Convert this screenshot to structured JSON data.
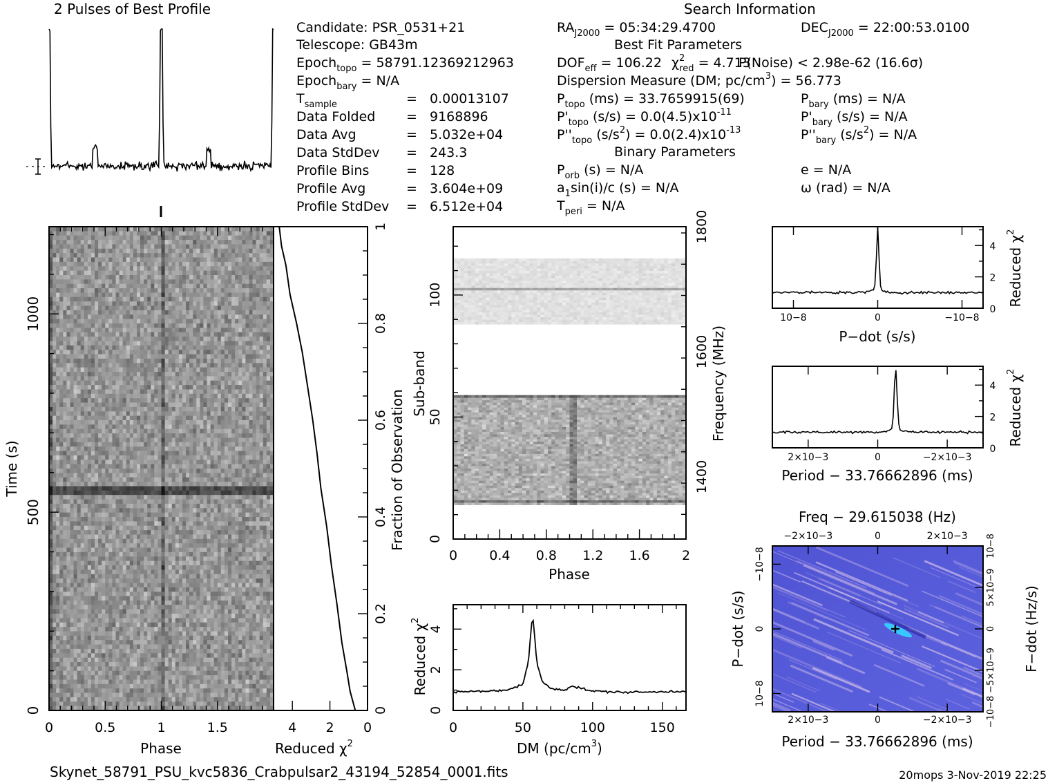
{
  "profile": {
    "title": "2 Pulses of Best Profile"
  },
  "search_info": {
    "header": "Search Information",
    "candidate": "Candidate:  PSR_0531+21",
    "telescope": "Telescope:  GB43m",
    "epoch_topo_label": "Epoch",
    "epoch_topo_sub": "topo",
    "epoch_topo_value": " = 58791.12369212963",
    "epoch_bary_label": "Epoch",
    "epoch_bary_sub": "bary",
    "epoch_bary_value": " = N/A",
    "rows": [
      {
        "label": "T",
        "sub": "sample",
        "eq": "=",
        "value": "0.00013107"
      },
      {
        "label": "Data Folded",
        "sub": "",
        "eq": "=",
        "value": "9168896"
      },
      {
        "label": "Data Avg",
        "sub": "",
        "eq": "=",
        "value": "5.032e+04"
      },
      {
        "label": "Data StdDev",
        "sub": "",
        "eq": "=",
        "value": "243.3"
      },
      {
        "label": "Profile Bins",
        "sub": "",
        "eq": "=",
        "value": "128"
      },
      {
        "label": "Profile Avg",
        "sub": "",
        "eq": "=",
        "value": "3.604e+09"
      },
      {
        "label": "Profile StdDev",
        "sub": "",
        "eq": "=",
        "value": "6.512e+04"
      }
    ],
    "ra_label": "RA",
    "ra_sub": "J2000",
    "ra_value": " = 05:34:29.4700",
    "dec_label": "DEC",
    "dec_sub": "J2000",
    "dec_value": " = 22:00:53.0100",
    "best_fit_header": "Best Fit Parameters",
    "dof_label": "DOF",
    "dof_sub": "eff",
    "dof_value": " = 106.22",
    "chi_sub": "red",
    "chi_value": " = 4.713",
    "pnoise": "P(Noise) < 2.98e-62  (16.6σ)",
    "dm_line": "Dispersion Measure (DM; pc/cm",
    "dm_value": ") = 56.773",
    "ptopo_label": "P",
    "ptopo_sub": "topo",
    "ptopo_value": " (ms) =  33.7659915(69)",
    "pbary_label": "P",
    "pbary_sub": "bary",
    "pbary_value": " (ms) = N/A",
    "pdtopo_label": "P'",
    "pdtopo_sub": "topo",
    "pdtopo_value": " (s/s) = 0.0(4.5)x10",
    "pdtopo_exp": "-11",
    "pdbary_label": "P'",
    "pdbary_sub": "bary",
    "pdbary_value": " (s/s) = N/A",
    "pddtopo_label": "P''",
    "pddtopo_sub": "topo",
    "pddtopo_value": " (s/s",
    "pddtopo_value2": ") = 0.0(2.4)x10",
    "pddtopo_exp": "-13",
    "pddbary_label": "P''",
    "pddbary_sub": "bary",
    "pddbary_value": " (s/s",
    "pddbary_value2": ") = N/A",
    "binary_header": "Binary Parameters",
    "porb_label": "P",
    "porb_sub": "orb",
    "porb_value": " (s) = N/A",
    "e_value": "e = N/A",
    "a1_label": "a",
    "a1_sub": "1",
    "a1_value": "sin(i)/c (s) = N/A",
    "omega_value": "ω (rad) = N/A",
    "tperi_label": "T",
    "tperi_sub": "peri",
    "tperi_value": " = N/A"
  },
  "axes": {
    "time_label": "Time (s)",
    "phase_label": "Phase",
    "redchi_label": "Reduced χ",
    "fraction_label": "Fraction of Observation",
    "subband_label": "Sub-band",
    "frequency_label": "Frequency (MHz)",
    "dm_label": "DM (pc/cm",
    "pdot_label": "P−dot (s/s)",
    "period_label": "Period − 33.76662896 (ms)",
    "freq_label": "Freq − 29.615038 (Hz)",
    "fdot_label": "F−dot (Hz/s)"
  },
  "footer": {
    "filename": "Skynet_58791_PSU_kvc5836_Crabpulsar2_43194_52854_0001.fits",
    "stamp": "20mops  3-Nov-2019 22:25"
  },
  "colors": {
    "ink": "#000000",
    "plane_base": "#5b5fd8",
    "plane_light": "#c9b8e8",
    "plane_peak": "#38c8ff"
  },
  "chart_data": [
    {
      "type": "line",
      "name": "pulse-profile",
      "title": "2 Pulses of Best Profile",
      "xlabel": "Phase",
      "xlim": [
        0,
        2
      ],
      "peak_phase": [
        0.0,
        1.0
      ]
    },
    {
      "type": "heatmap",
      "name": "time-vs-phase",
      "xlabel": "Phase",
      "ylabel": "Time (s)",
      "xlim": [
        0,
        2
      ],
      "ylim": [
        0,
        1220
      ],
      "x_ticks": [
        "0",
        "0.5",
        "1",
        "1.5"
      ],
      "y_ticks": [
        "0",
        "500",
        "1000"
      ]
    },
    {
      "type": "line",
      "name": "cumulative-reduced-chi2",
      "xlabel": "Reduced χ2",
      "ylabel": "Fraction of Observation",
      "xlim": [
        5,
        0
      ],
      "ylim": [
        0,
        1
      ],
      "x_ticks": [
        "4",
        "2",
        "0"
      ],
      "y_ticks": [
        "0",
        "0.2",
        "0.4",
        "0.6",
        "0.8",
        "1"
      ],
      "x": [
        4.7,
        4.6,
        4.35,
        4.1,
        3.8,
        3.5,
        3.2,
        2.95,
        2.7,
        2.45,
        2.2,
        1.95,
        1.65,
        1.35,
        1.1,
        0.9,
        0.65
      ],
      "y": [
        1.0,
        0.96,
        0.92,
        0.86,
        0.8,
        0.74,
        0.67,
        0.6,
        0.53,
        0.46,
        0.38,
        0.3,
        0.22,
        0.14,
        0.08,
        0.04,
        0.0
      ]
    },
    {
      "type": "heatmap",
      "name": "subband-vs-phase",
      "xlabel": "Phase",
      "ylabel": "Sub-band",
      "xlim": [
        0,
        2
      ],
      "ylim": [
        0,
        128
      ],
      "x_ticks": [
        "0",
        "0.4",
        "0.8",
        "1.2",
        "1.6",
        "2"
      ],
      "y_ticks": [
        "0",
        "50",
        "100"
      ],
      "y2label": "Frequency (MHz)",
      "y2_ticks": [
        "1400",
        "1600",
        "1800"
      ]
    },
    {
      "type": "line",
      "name": "dm-curve",
      "xlabel": "DM (pc/cm3)",
      "ylabel": "Reduced χ2",
      "xlim": [
        0,
        167
      ],
      "ylim": [
        0,
        5.2
      ],
      "x_ticks": [
        "0",
        "50",
        "100",
        "150"
      ],
      "y_ticks": [
        "0",
        "2",
        "4"
      ],
      "x": [
        0,
        20,
        40,
        50,
        54,
        56,
        57,
        58,
        60,
        64,
        70,
        80,
        85,
        100,
        120,
        140,
        167
      ],
      "y": [
        0.9,
        0.95,
        1.0,
        1.3,
        2.4,
        4.1,
        4.7,
        4.0,
        2.3,
        1.4,
        1.1,
        1.0,
        1.2,
        0.95,
        0.9,
        0.9,
        0.95
      ]
    },
    {
      "type": "line",
      "name": "pdot-curve",
      "xlabel": "P−dot (s/s)",
      "ylabel": "Reduced χ2",
      "ylim": [
        0,
        5.2
      ],
      "y_ticks": [
        "0",
        "2",
        "4"
      ],
      "x_ticks": [
        "10−8",
        "0",
        "−10−8"
      ],
      "peak_x": 0,
      "peak_y": 4.8,
      "baseline": 1.0
    },
    {
      "type": "line",
      "name": "period-curve",
      "xlabel": "Period − 33.76662896 (ms)",
      "ylabel": "Reduced χ2",
      "ylim": [
        0,
        5.2
      ],
      "y_ticks": [
        "0",
        "2",
        "4"
      ],
      "x_ticks": [
        "2×10−3",
        "0",
        "−2×10−3"
      ],
      "peak_y": 4.8,
      "baseline": 1.0
    },
    {
      "type": "heatmap",
      "name": "period-pdot-plane",
      "title": "Freq − 29.615038 (Hz)",
      "xlabel": "Period − 33.76662896 (ms)",
      "ylabel": "P−dot (s/s)",
      "y2label": "F−dot (Hz/s)",
      "x_ticks": [
        "2×10−3",
        "0",
        "−2×10−3"
      ],
      "top_ticks": [
        "−2×10−3",
        "0",
        "2×10−3"
      ],
      "y_ticks": [
        "−10−8",
        "0",
        "10−8"
      ],
      "y2_ticks": [
        "10−8",
        "5×10−9",
        "0",
        "−5×10−9",
        "−10−8"
      ]
    }
  ]
}
